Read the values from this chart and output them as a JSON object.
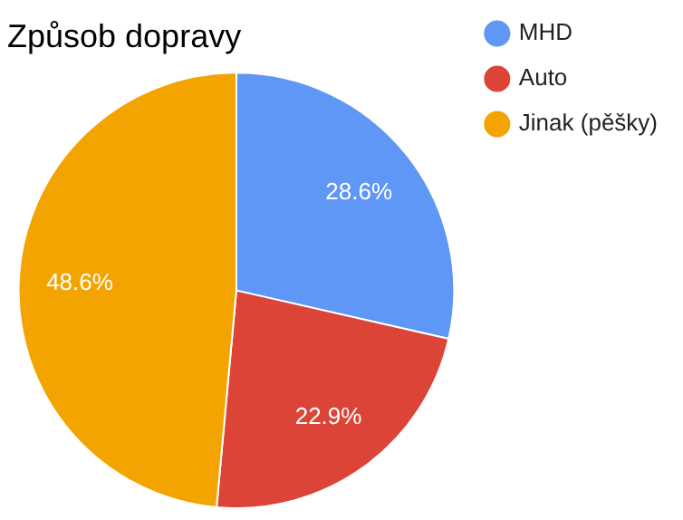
{
  "chart_data": {
    "type": "pie",
    "title": "Způsob dopravy",
    "categories": [
      "MHD",
      "Auto",
      "Jinak (pěšky)"
    ],
    "values": [
      28.6,
      22.9,
      48.6
    ],
    "colors": [
      "#5e97f6",
      "#db4437",
      "#f4a400"
    ],
    "value_labels": [
      "28.6%",
      "22.9%",
      "48.6%"
    ],
    "legend": "right"
  }
}
